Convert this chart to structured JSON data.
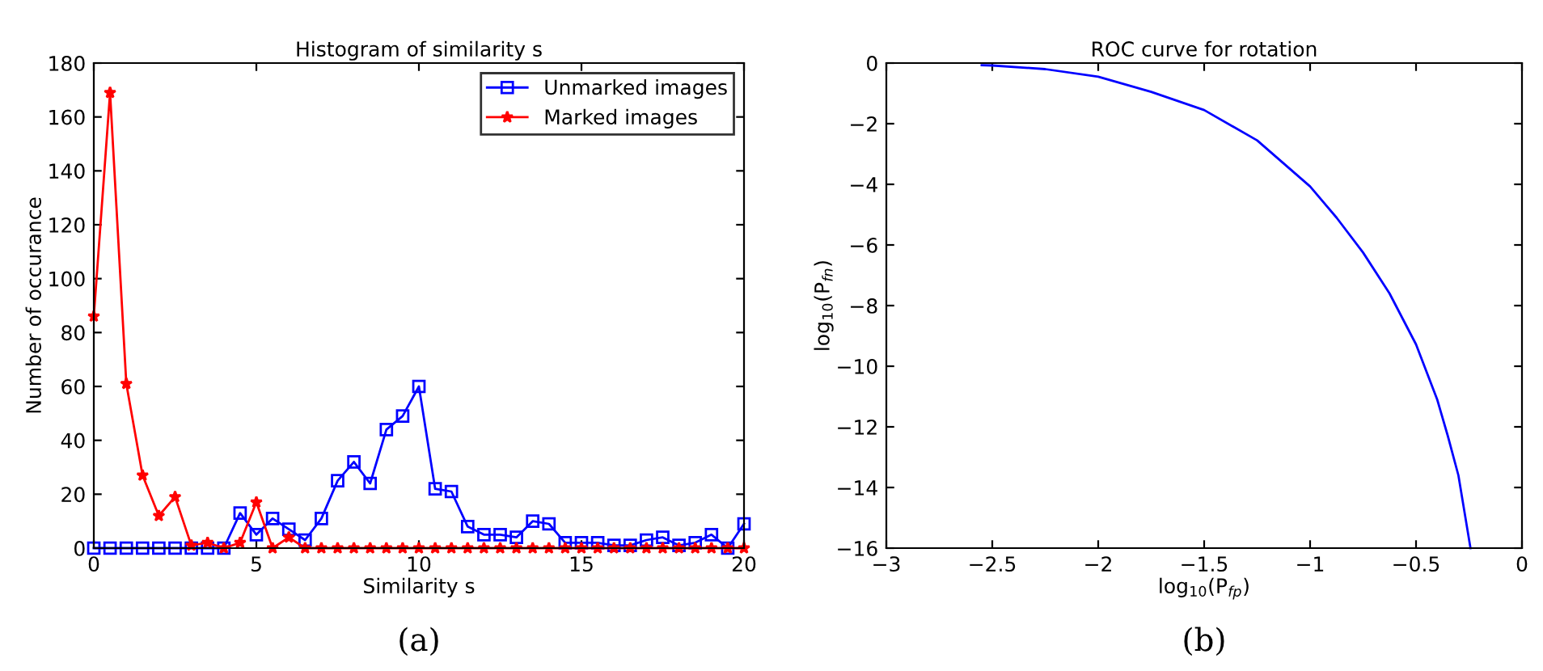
{
  "chart_data": [
    {
      "type": "line",
      "title": "Histogram of similarity s",
      "xlabel": "Similarity s",
      "ylabel": "Number of occurance",
      "x": [
        0,
        0.5,
        1,
        1.5,
        2,
        2.5,
        3,
        3.5,
        4,
        4.5,
        5,
        5.5,
        6,
        6.5,
        7,
        7.5,
        8,
        8.5,
        9,
        9.5,
        10,
        10.5,
        11,
        11.5,
        12,
        12.5,
        13,
        13.5,
        14,
        14.5,
        15,
        15.5,
        16,
        16.5,
        17,
        17.5,
        18,
        18.5,
        19,
        19.5,
        20
      ],
      "series": [
        {
          "name": "Unmarked images",
          "color": "#0000ff",
          "marker": "square",
          "values": [
            0,
            0,
            0,
            0,
            0,
            0,
            0,
            0,
            0,
            13,
            5,
            11,
            7,
            3,
            11,
            25,
            32,
            24,
            44,
            49,
            60,
            22,
            21,
            8,
            5,
            5,
            4,
            10,
            9,
            2,
            2,
            2,
            1,
            1,
            3,
            4,
            1,
            2,
            5,
            0,
            9
          ]
        },
        {
          "name": "Marked images",
          "color": "#ff0000",
          "marker": "star",
          "values": [
            86,
            169,
            61,
            27,
            12,
            19,
            1,
            2,
            0,
            2,
            17,
            0,
            4,
            0,
            0,
            0,
            0,
            0,
            0,
            0,
            0,
            0,
            0,
            0,
            0,
            0,
            0,
            0,
            0,
            0,
            0,
            0,
            0,
            0,
            0,
            0,
            0,
            0,
            0,
            0,
            0
          ]
        }
      ],
      "xlim": [
        0,
        20
      ],
      "xticks": [
        0,
        5,
        10,
        15,
        20
      ],
      "ylim": [
        0,
        180
      ],
      "yticks": [
        0,
        20,
        40,
        60,
        80,
        100,
        120,
        140,
        160,
        180
      ],
      "legend": "top right",
      "grid": false,
      "annotations": [
        "(a)"
      ]
    },
    {
      "type": "line",
      "title": "ROC curve for rotation",
      "xlabel": "log$_{10}$(P$_{fp}$)",
      "ylabel": "log$_{10}$(P$_{fn}$)",
      "series": [
        {
          "color": "#0000ff",
          "marker": "none",
          "x": [
            -2.55,
            -2.5,
            -2.25,
            -2.0,
            -1.75,
            -1.5,
            -1.25,
            -1.0,
            -0.875,
            -0.75,
            -0.625,
            -0.5,
            -0.4,
            -0.35,
            -0.3,
            -0.243
          ],
          "values": [
            -0.07,
            -0.08,
            -0.2,
            -0.45,
            -0.95,
            -1.55,
            -2.55,
            -4.07,
            -5.1,
            -6.25,
            -7.6,
            -9.28,
            -11.1,
            -12.3,
            -13.6,
            -16
          ]
        }
      ],
      "xlim": [
        -3,
        0
      ],
      "xticks": [
        {
          "value": -3,
          "label": "−3"
        },
        {
          "value": -2.5,
          "label": "−2.5"
        },
        {
          "value": -2,
          "label": "−2"
        },
        {
          "value": -1.5,
          "label": "−1.5"
        },
        {
          "value": -1,
          "label": "−1"
        },
        {
          "value": -0.5,
          "label": "−0.5"
        },
        0
      ],
      "ylim": [
        -16,
        0
      ],
      "yticks": [
        {
          "value": -16,
          "label": "−16"
        },
        {
          "value": -14,
          "label": "−14"
        },
        {
          "value": -12,
          "label": "−12"
        },
        {
          "value": -10,
          "label": "−10"
        },
        {
          "value": -8,
          "label": "−8"
        },
        {
          "value": -6,
          "label": "−6"
        },
        {
          "value": -4,
          "label": "−4"
        },
        {
          "value": -2,
          "label": "−2"
        },
        0
      ],
      "grid": false,
      "annotations": [
        "(b)"
      ]
    }
  ]
}
